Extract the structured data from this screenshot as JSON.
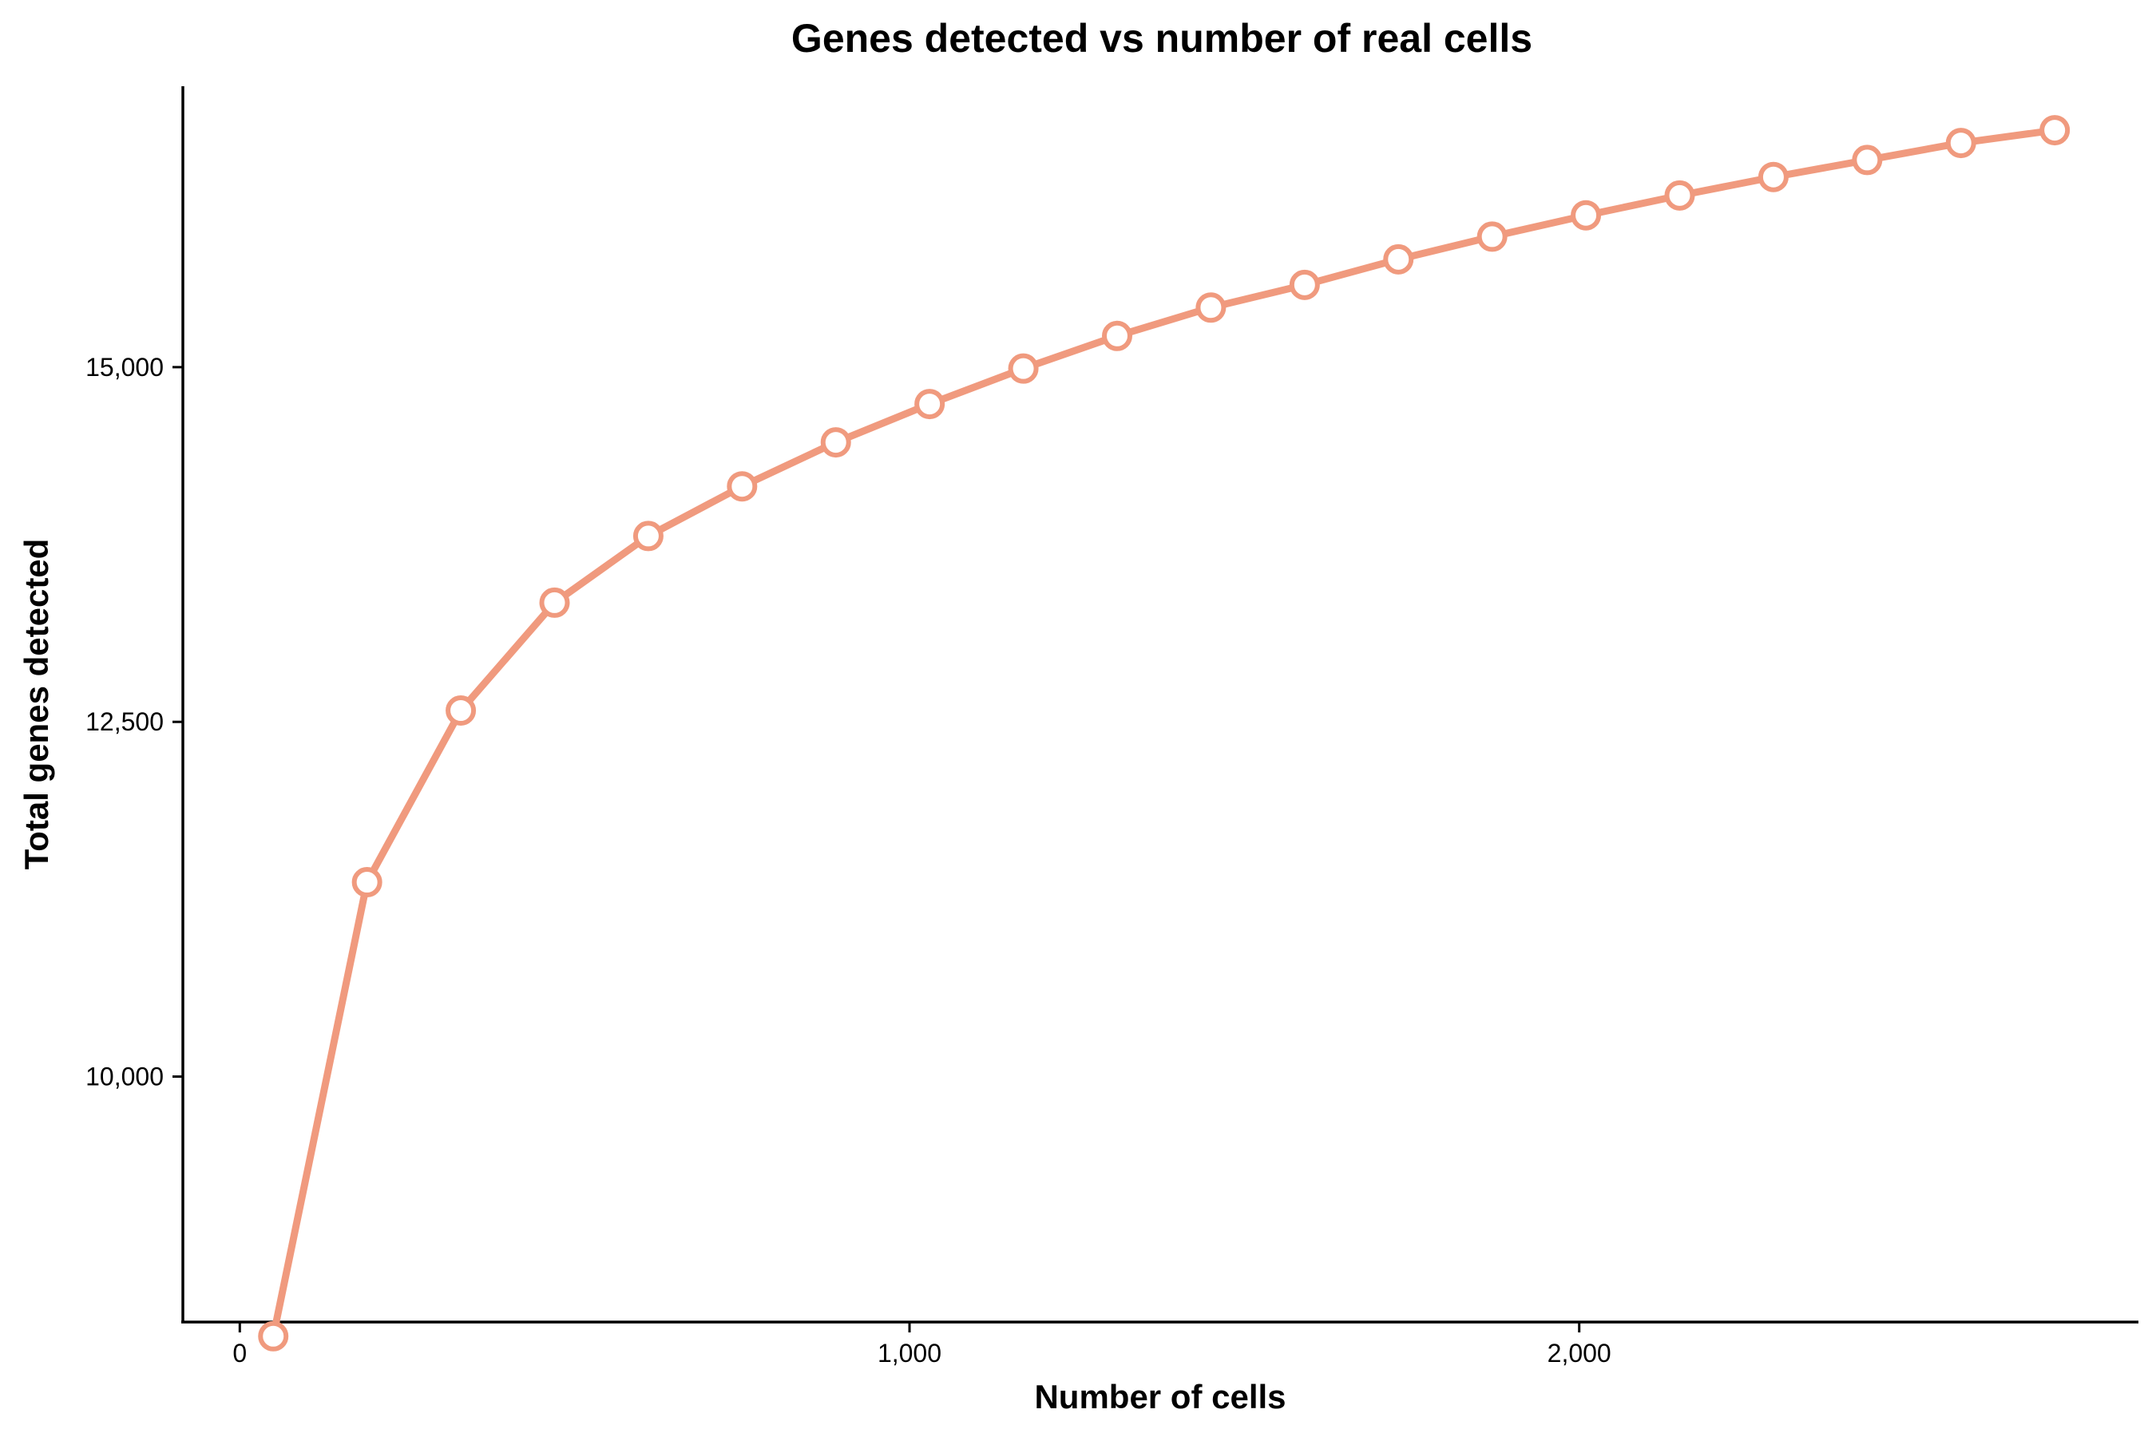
{
  "chart_data": {
    "type": "line",
    "title": "Genes detected vs number of real cells",
    "xlabel": "Number of cells",
    "ylabel": "Total genes detected",
    "xlim": [
      -85,
      2835
    ],
    "ylim": [
      8270,
      16980
    ],
    "x_ticks": [
      0,
      1000,
      2000
    ],
    "x_tick_labels": [
      "0",
      "1,000",
      "2,000"
    ],
    "y_ticks": [
      10000,
      12500,
      15000
    ],
    "y_tick_labels": [
      "10,000",
      "12,500",
      "15,000"
    ],
    "grid": false,
    "legend": "none",
    "series": [
      {
        "color": "#F09A7E",
        "x": [
          50,
          190,
          330,
          470,
          610,
          750,
          890,
          1030,
          1170,
          1310,
          1450,
          1590,
          1730,
          1870,
          2010,
          2150,
          2290,
          2430,
          2570,
          2710
        ],
        "y": [
          8170,
          11370,
          12580,
          13340,
          13810,
          14160,
          14470,
          14740,
          14990,
          15220,
          15420,
          15580,
          15760,
          15920,
          16070,
          16210,
          16340,
          16460,
          16580,
          16670
        ]
      }
    ]
  }
}
